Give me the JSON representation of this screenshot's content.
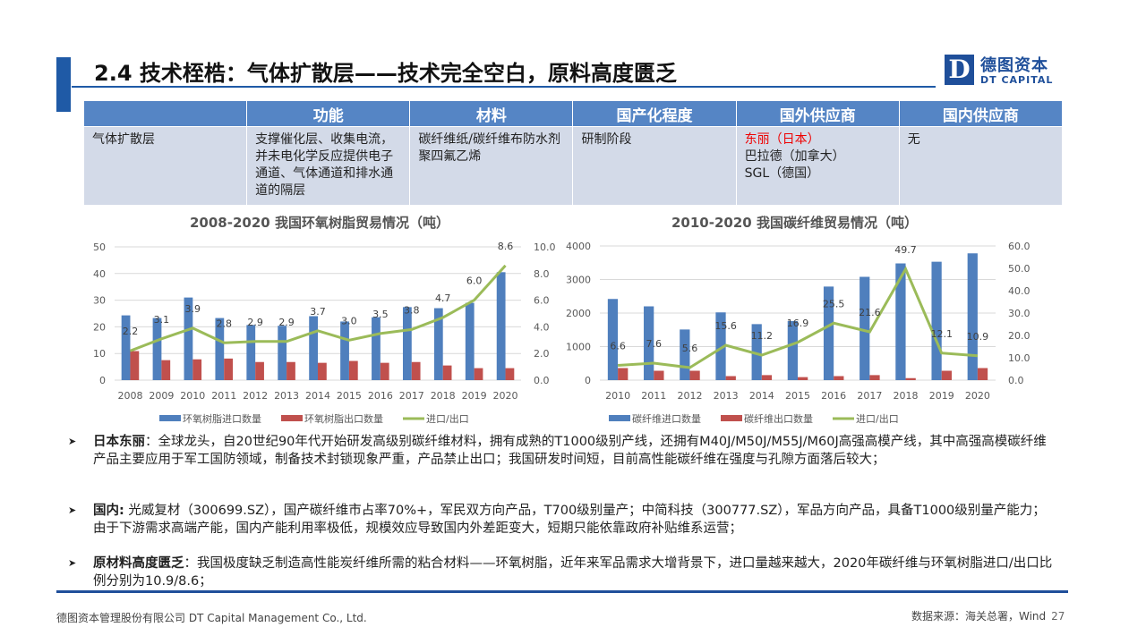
{
  "header": {
    "title": "2.4 技术桎梏：气体扩散层——技术完全空白，原料高度匮乏",
    "logo_mark": "D",
    "logo_cn": "德图资本",
    "logo_en": "DT CAPITAL"
  },
  "table": {
    "headers": [
      "",
      "功能",
      "材料",
      "国产化程度",
      "国外供应商",
      "国内供应商"
    ],
    "row": {
      "name": "气体扩散层",
      "function": "支撑催化层、收集电流，并未电化学反应提供电子通道、气体通道和排水通道的隔层",
      "material": "碳纤维纸/碳纤维布防水剂聚四氟乙烯",
      "localization": "研制阶段",
      "foreign": [
        "东丽（日本）",
        "巴拉德（加拿大）",
        "SGL（德国）"
      ],
      "domestic": "无"
    }
  },
  "colors": {
    "import": "#4f7fbd",
    "export": "#c0504d",
    "ratio": "#9bbb59"
  },
  "chart_data": [
    {
      "type": "bar",
      "title": "2008-2020 我国环氧树脂贸易情况（吨）",
      "categories": [
        "2008",
        "2009",
        "2010",
        "2011",
        "2012",
        "2013",
        "2014",
        "2015",
        "2016",
        "2017",
        "2018",
        "2019",
        "2020"
      ],
      "ylim": [
        0,
        50
      ],
      "yticks": [
        "0",
        "10",
        "20",
        "30",
        "40",
        "50"
      ],
      "y2lim": [
        0,
        10
      ],
      "y2ticks": [
        "0.0",
        "2.0",
        "4.0",
        "6.0",
        "8.0",
        "10.0"
      ],
      "series": [
        {
          "name": "环氧树脂进口数量",
          "type": "bar",
          "values": [
            24.3,
            23.3,
            31,
            23.3,
            20.7,
            20.4,
            24,
            22,
            23.6,
            27.4,
            27,
            29,
            40.5
          ]
        },
        {
          "name": "环氧树脂出口数量",
          "type": "bar",
          "values": [
            10.9,
            7.5,
            7.8,
            8.1,
            6.8,
            6.8,
            6.5,
            7.2,
            6.5,
            6.8,
            5.5,
            4.5,
            4.5
          ]
        },
        {
          "name": "进口/出口",
          "type": "line",
          "axis": "right",
          "values": [
            2.2,
            3.1,
            3.9,
            2.8,
            2.9,
            2.9,
            3.7,
            3.0,
            3.5,
            3.8,
            4.7,
            6.0,
            8.6
          ],
          "labels": [
            "2.2",
            "3.1",
            "3.9",
            "2.8",
            "2.9",
            "2.9",
            "3.7",
            "3.0",
            "3.5",
            "3.8",
            "4.7",
            "6.0",
            "8.6"
          ]
        }
      ]
    },
    {
      "type": "bar",
      "title": "2010-2020 我国碳纤维贸易情况（吨）",
      "categories": [
        "2010",
        "2011",
        "2012",
        "2013",
        "2014",
        "2015",
        "2016",
        "2017",
        "2018",
        "2019",
        "2020"
      ],
      "ylim": [
        0,
        4000
      ],
      "yticks": [
        "0",
        "1000",
        "2000",
        "3000",
        "4000"
      ],
      "y2lim": [
        0,
        60
      ],
      "y2ticks": [
        "0.0",
        "10.0",
        "20.0",
        "30.0",
        "40.0",
        "50.0",
        "60.0"
      ],
      "series": [
        {
          "name": "碳纤维进口数量",
          "type": "bar",
          "values": [
            2420,
            2200,
            1510,
            2020,
            1670,
            1760,
            2790,
            3080,
            3480,
            3530,
            3780
          ]
        },
        {
          "name": "碳纤维出口数量",
          "type": "bar",
          "values": [
            360,
            280,
            280,
            120,
            150,
            90,
            120,
            150,
            60,
            280,
            360
          ]
        },
        {
          "name": "进口/出口",
          "type": "line",
          "axis": "right",
          "values": [
            6.6,
            7.6,
            5.6,
            15.6,
            11.2,
            16.9,
            25.5,
            21.6,
            49.7,
            12.1,
            10.9
          ],
          "labels": [
            "6.6",
            "7.6",
            "5.6",
            "15.6",
            "11.2",
            "16.9",
            "25.5",
            "21.6",
            "49.7",
            "12.1",
            "10.9"
          ]
        }
      ]
    }
  ],
  "bullets": [
    {
      "head": "日本东丽",
      "body": "：全球龙头，自20世纪90年代开始研发高级别碳纤维材料，拥有成熟的T1000级别产线，还拥有M40J/M50J/M55J/M60J高强高模产线，其中高强高模碳纤维产品主要应用于军工国防领域，制备技术封锁现象严重，产品禁止出口；我国研发时间短，目前高性能碳纤维在强度与孔隙方面落后较大；"
    },
    {
      "head": "国内:",
      "body": " 光威复材（300699.SZ），国产碳纤维市占率70%+，军民双方向产品，T700级别量产；中简科技（300777.SZ），军品方向产品，具备T1000级别量产能力；由于下游需求高端产能，国内产能利用率极低，规模效应导致国内外差距变大，短期只能依靠政府补贴维系运营；"
    },
    {
      "head": "原材料高度匮乏",
      "body": "：我国极度缺乏制造高性能炭纤维所需的粘合材料——环氧树脂，近年来军品需求大增背景下，进口量越来越大，2020年碳纤维与环氧树脂进口/出口比例分别为10.9/8.6；"
    }
  ],
  "footer": {
    "company": "德图资本管理股份有限公司  DT Capital Management Co., Ltd.",
    "source": "数据来源：海关总署，Wind",
    "page": "27"
  }
}
